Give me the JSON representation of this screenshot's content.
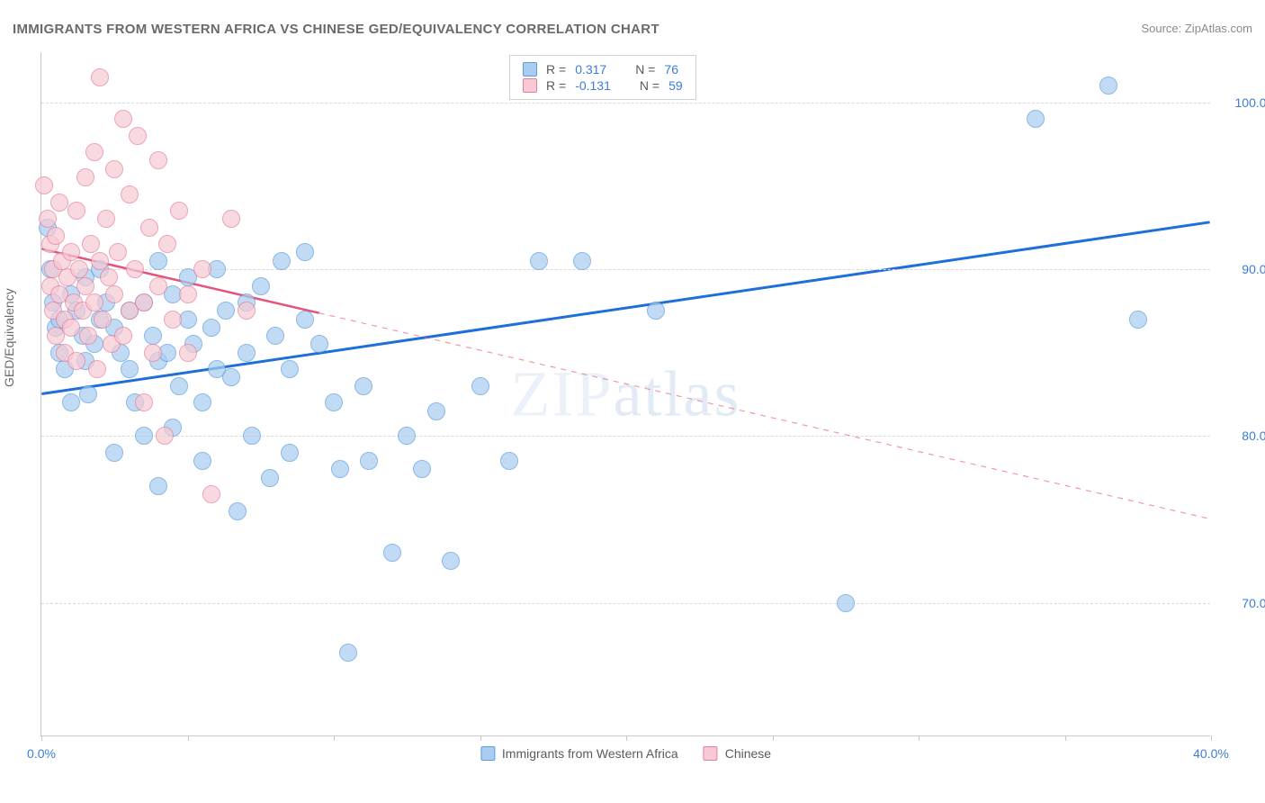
{
  "title": "IMMIGRANTS FROM WESTERN AFRICA VS CHINESE GED/EQUIVALENCY CORRELATION CHART",
  "source": "Source: ZipAtlas.com",
  "watermark": "ZIPatlas",
  "chart": {
    "type": "scatter",
    "ylabel": "GED/Equivalency",
    "xlim": [
      0,
      40
    ],
    "ylim": [
      62,
      103
    ],
    "yticks": [
      70.0,
      80.0,
      90.0,
      100.0
    ],
    "ytick_labels": [
      "70.0%",
      "80.0%",
      "90.0%",
      "100.0%"
    ],
    "xticks": [
      0,
      5,
      10,
      15,
      20,
      25,
      30,
      35,
      40
    ],
    "xtick_labels_shown": {
      "0": "0.0%",
      "40": "40.0%"
    },
    "background_color": "#ffffff",
    "grid_color": "#d9d9d9",
    "axis_color": "#c9c9c9",
    "tick_label_color": "#3b7dd8",
    "title_color": "#6a6a6a",
    "title_fontsize": 15,
    "label_fontsize": 14,
    "point_radius": 10,
    "series": [
      {
        "name": "Immigrants from Western Africa",
        "key": "wafrica",
        "fill": "#a9cdf0",
        "stroke": "#5a9bdc",
        "opacity": 0.7,
        "R": "0.317",
        "N": "76",
        "trend": {
          "x1": 0,
          "y1": 82.5,
          "x2": 40,
          "y2": 92.8,
          "solid_until_x": 40,
          "color": "#1e6fd9",
          "width": 3
        },
        "points": [
          [
            0.2,
            92.5
          ],
          [
            0.3,
            90.0
          ],
          [
            0.4,
            88.0
          ],
          [
            0.5,
            86.5
          ],
          [
            0.6,
            85.0
          ],
          [
            0.6,
            87.0
          ],
          [
            0.8,
            84.0
          ],
          [
            1.0,
            88.5
          ],
          [
            1.0,
            82.0
          ],
          [
            1.2,
            87.5
          ],
          [
            1.4,
            86.0
          ],
          [
            1.5,
            89.5
          ],
          [
            1.5,
            84.5
          ],
          [
            1.6,
            82.5
          ],
          [
            1.8,
            85.5
          ],
          [
            2.0,
            90.0
          ],
          [
            2.0,
            87.0
          ],
          [
            2.2,
            88.0
          ],
          [
            2.5,
            86.5
          ],
          [
            2.5,
            79.0
          ],
          [
            2.7,
            85.0
          ],
          [
            3.0,
            84.0
          ],
          [
            3.0,
            87.5
          ],
          [
            3.2,
            82.0
          ],
          [
            3.5,
            88.0
          ],
          [
            3.5,
            80.0
          ],
          [
            3.8,
            86.0
          ],
          [
            4.0,
            90.5
          ],
          [
            4.0,
            84.5
          ],
          [
            4.0,
            77.0
          ],
          [
            4.3,
            85.0
          ],
          [
            4.5,
            88.5
          ],
          [
            4.5,
            80.5
          ],
          [
            4.7,
            83.0
          ],
          [
            5.0,
            87.0
          ],
          [
            5.0,
            89.5
          ],
          [
            5.2,
            85.5
          ],
          [
            5.5,
            82.0
          ],
          [
            5.5,
            78.5
          ],
          [
            5.8,
            86.5
          ],
          [
            6.0,
            90.0
          ],
          [
            6.0,
            84.0
          ],
          [
            6.3,
            87.5
          ],
          [
            6.5,
            83.5
          ],
          [
            6.7,
            75.5
          ],
          [
            7.0,
            88.0
          ],
          [
            7.0,
            85.0
          ],
          [
            7.2,
            80.0
          ],
          [
            7.5,
            89.0
          ],
          [
            7.8,
            77.5
          ],
          [
            8.0,
            86.0
          ],
          [
            8.2,
            90.5
          ],
          [
            8.5,
            84.0
          ],
          [
            8.5,
            79.0
          ],
          [
            9.0,
            87.0
          ],
          [
            9.0,
            91.0
          ],
          [
            9.5,
            85.5
          ],
          [
            10.0,
            82.0
          ],
          [
            10.2,
            78.0
          ],
          [
            10.5,
            67.0
          ],
          [
            11.0,
            83.0
          ],
          [
            11.2,
            78.5
          ],
          [
            12.0,
            73.0
          ],
          [
            12.5,
            80.0
          ],
          [
            13.0,
            78.0
          ],
          [
            13.5,
            81.5
          ],
          [
            14.0,
            72.5
          ],
          [
            15.0,
            83.0
          ],
          [
            16.0,
            78.5
          ],
          [
            17.0,
            90.5
          ],
          [
            18.5,
            90.5
          ],
          [
            21.0,
            87.5
          ],
          [
            27.5,
            70.0
          ],
          [
            34.0,
            99.0
          ],
          [
            36.5,
            101.0
          ],
          [
            37.5,
            87.0
          ]
        ]
      },
      {
        "name": "Chinese",
        "key": "chinese",
        "fill": "#f7c9d4",
        "stroke": "#e57f9a",
        "opacity": 0.7,
        "R": "-0.131",
        "N": "59",
        "trend": {
          "x1": 0,
          "y1": 91.2,
          "x2": 40,
          "y2": 75.0,
          "solid_until_x": 9.5,
          "color": "#e6537a",
          "width": 2.5
        },
        "points": [
          [
            0.1,
            95.0
          ],
          [
            0.2,
            93.0
          ],
          [
            0.3,
            91.5
          ],
          [
            0.3,
            89.0
          ],
          [
            0.4,
            90.0
          ],
          [
            0.4,
            87.5
          ],
          [
            0.5,
            92.0
          ],
          [
            0.5,
            86.0
          ],
          [
            0.6,
            94.0
          ],
          [
            0.6,
            88.5
          ],
          [
            0.7,
            90.5
          ],
          [
            0.8,
            87.0
          ],
          [
            0.8,
            85.0
          ],
          [
            0.9,
            89.5
          ],
          [
            1.0,
            91.0
          ],
          [
            1.0,
            86.5
          ],
          [
            1.1,
            88.0
          ],
          [
            1.2,
            93.5
          ],
          [
            1.2,
            84.5
          ],
          [
            1.3,
            90.0
          ],
          [
            1.4,
            87.5
          ],
          [
            1.5,
            95.5
          ],
          [
            1.5,
            89.0
          ],
          [
            1.6,
            86.0
          ],
          [
            1.7,
            91.5
          ],
          [
            1.8,
            88.0
          ],
          [
            1.8,
            97.0
          ],
          [
            1.9,
            84.0
          ],
          [
            2.0,
            101.5
          ],
          [
            2.0,
            90.5
          ],
          [
            2.1,
            87.0
          ],
          [
            2.2,
            93.0
          ],
          [
            2.3,
            89.5
          ],
          [
            2.4,
            85.5
          ],
          [
            2.5,
            96.0
          ],
          [
            2.5,
            88.5
          ],
          [
            2.6,
            91.0
          ],
          [
            2.8,
            99.0
          ],
          [
            2.8,
            86.0
          ],
          [
            3.0,
            94.5
          ],
          [
            3.0,
            87.5
          ],
          [
            3.2,
            90.0
          ],
          [
            3.3,
            98.0
          ],
          [
            3.5,
            88.0
          ],
          [
            3.5,
            82.0
          ],
          [
            3.7,
            92.5
          ],
          [
            3.8,
            85.0
          ],
          [
            4.0,
            96.5
          ],
          [
            4.0,
            89.0
          ],
          [
            4.2,
            80.0
          ],
          [
            4.3,
            91.5
          ],
          [
            4.5,
            87.0
          ],
          [
            4.7,
            93.5
          ],
          [
            5.0,
            88.5
          ],
          [
            5.0,
            85.0
          ],
          [
            5.5,
            90.0
          ],
          [
            5.8,
            76.5
          ],
          [
            6.5,
            93.0
          ],
          [
            7.0,
            87.5
          ]
        ]
      }
    ],
    "legend_top": {
      "position": "top-center",
      "r_label": "R =",
      "n_label": "N ="
    },
    "legend_bottom": {
      "items": [
        "Immigrants from Western Africa",
        "Chinese"
      ]
    }
  }
}
